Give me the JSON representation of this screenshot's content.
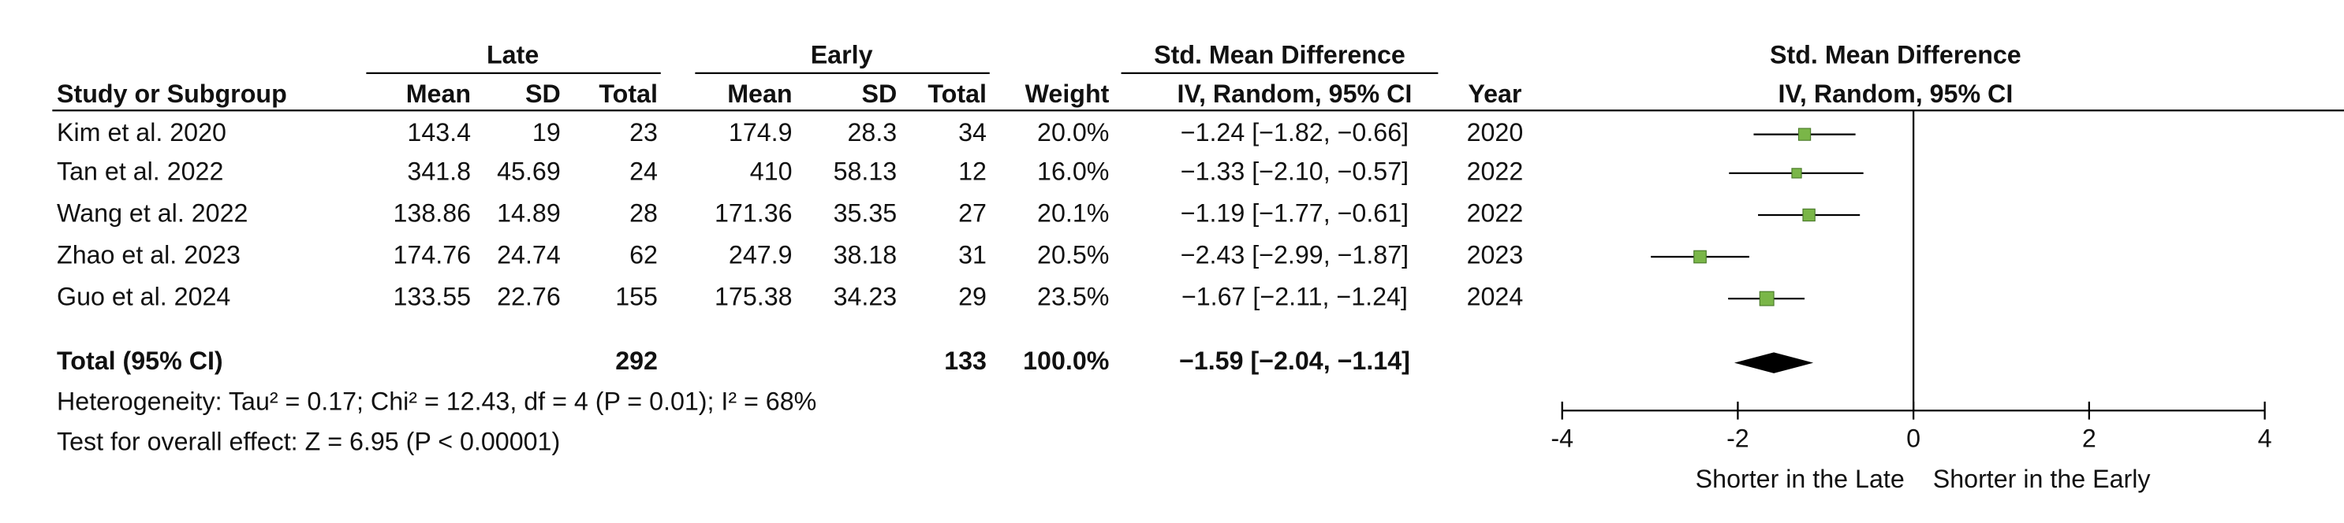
{
  "chart_data": {
    "type": "forest",
    "group_headers": [
      "Late",
      "Early"
    ],
    "effect_header": "Std. Mean Difference",
    "columns": [
      "Study or Subgroup",
      "Mean",
      "SD",
      "Total",
      "Mean",
      "SD",
      "Total",
      "Weight",
      "IV, Random, 95% CI",
      "Year"
    ],
    "plot_header": "Std. Mean Difference",
    "plot_subheader": "IV, Random, 95% CI",
    "studies": [
      {
        "name": "Kim et al. 2020",
        "late_mean": 143.4,
        "late_sd": 19,
        "late_total": 23,
        "early_mean": 174.9,
        "early_sd": 28.3,
        "early_total": 34,
        "weight": 20.0,
        "weight_label": "20.0%",
        "smd": -1.24,
        "ci": [
          -1.82,
          -0.66
        ],
        "ci_label": "−1.24 [−1.82, −0.66]",
        "year": 2020
      },
      {
        "name": "Tan et al. 2022",
        "late_mean": 341.8,
        "late_sd": 45.69,
        "late_total": 24,
        "early_mean": 410,
        "early_sd": 58.13,
        "early_total": 12,
        "weight": 16.0,
        "weight_label": "16.0%",
        "smd": -1.33,
        "ci": [
          -2.1,
          -0.57
        ],
        "ci_label": "−1.33 [−2.10, −0.57]",
        "year": 2022
      },
      {
        "name": "Wang et al. 2022",
        "late_mean": 138.86,
        "late_sd": 14.89,
        "late_total": 28,
        "early_mean": 171.36,
        "early_sd": 35.35,
        "early_total": 27,
        "weight": 20.1,
        "weight_label": "20.1%",
        "smd": -1.19,
        "ci": [
          -1.77,
          -0.61
        ],
        "ci_label": "−1.19 [−1.77, −0.61]",
        "year": 2022
      },
      {
        "name": "Zhao et al. 2023",
        "late_mean": 174.76,
        "late_sd": 24.74,
        "late_total": 62,
        "early_mean": 247.9,
        "early_sd": 38.18,
        "early_total": 31,
        "weight": 20.5,
        "weight_label": "20.5%",
        "smd": -2.43,
        "ci": [
          -2.99,
          -1.87
        ],
        "ci_label": "−2.43 [−2.99, −1.87]",
        "year": 2023
      },
      {
        "name": "Guo et al. 2024",
        "late_mean": 133.55,
        "late_sd": 22.76,
        "late_total": 155,
        "early_mean": 175.38,
        "early_sd": 34.23,
        "early_total": 29,
        "weight": 23.5,
        "weight_label": "23.5%",
        "smd": -1.67,
        "ci": [
          -2.11,
          -1.24
        ],
        "ci_label": "−1.67 [−2.11, −1.24]",
        "year": 2024
      }
    ],
    "total": {
      "name": "Total (95% CI)",
      "late_total": 292,
      "early_total": 133,
      "weight": 100.0,
      "weight_label": "100.0%",
      "smd": -1.59,
      "ci": [
        -2.04,
        -1.14
      ],
      "ci_label": "−1.59 [−2.04, −1.14]"
    },
    "heterogeneity": "Heterogeneity: Tau² = 0.17; Chi² = 12.43, df = 4 (P = 0.01); I² = 68%",
    "overall_effect": "Test for overall effect: Z = 6.95 (P < 0.00001)",
    "xlim": [
      -4,
      4
    ],
    "xticks": [
      -4,
      -2,
      0,
      2,
      4
    ],
    "x_label_left": "Shorter in the Late",
    "x_label_right": "Shorter in the Early",
    "square_color": "#7ab648",
    "diamond_color": "#000000"
  }
}
